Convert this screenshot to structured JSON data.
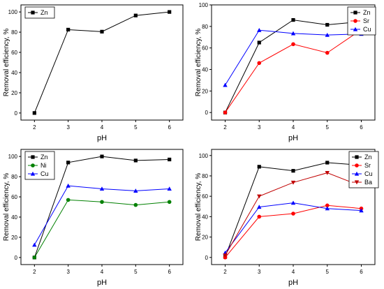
{
  "chart_data": [
    {
      "type": "line",
      "xlabel": "pH",
      "ylabel": "Removal efficiency, %",
      "x": [
        2,
        3,
        4,
        5,
        6
      ],
      "xlim": [
        1.6,
        6.4
      ],
      "ylim": [
        -7,
        107
      ],
      "yticks": [
        0,
        20,
        40,
        60,
        80,
        100
      ],
      "grid": false,
      "legend_position": "top-left",
      "series": [
        {
          "name": "Zn",
          "values": [
            0,
            82.5,
            80.5,
            96.5,
            100
          ],
          "color": "#000000",
          "marker": "square"
        }
      ]
    },
    {
      "type": "line",
      "xlabel": "pH",
      "ylabel": "Removal efficiency, %",
      "x": [
        2,
        3,
        4,
        5,
        6
      ],
      "xlim": [
        1.6,
        6.4
      ],
      "ylim": [
        -7,
        100
      ],
      "yticks": [
        0,
        20,
        40,
        60,
        80,
        100
      ],
      "grid": false,
      "legend_position": "top-right",
      "series": [
        {
          "name": "Zn",
          "values": [
            0,
            65,
            86,
            81.5,
            84.5
          ],
          "color": "#000000",
          "marker": "square"
        },
        {
          "name": "Sr",
          "values": [
            0,
            46,
            63.5,
            55.5,
            77
          ],
          "color": "#ff0000",
          "marker": "circle"
        },
        {
          "name": "Cu",
          "values": [
            25.5,
            76.5,
            73.5,
            72,
            73
          ],
          "color": "#0000ff",
          "marker": "triangle"
        }
      ]
    },
    {
      "type": "line",
      "xlabel": "pH",
      "ylabel": "Removal efficiency, %",
      "x": [
        2,
        3,
        4,
        5,
        6
      ],
      "xlim": [
        1.6,
        6.4
      ],
      "ylim": [
        -7,
        107
      ],
      "yticks": [
        0,
        20,
        40,
        60,
        80,
        100
      ],
      "grid": false,
      "legend_position": "top-left",
      "series": [
        {
          "name": "Zn",
          "values": [
            0,
            94,
            100,
            96,
            97
          ],
          "color": "#000000",
          "marker": "square"
        },
        {
          "name": "Ni",
          "values": [
            0,
            57,
            55,
            52,
            55
          ],
          "color": "#008000",
          "marker": "circle"
        },
        {
          "name": "Cu",
          "values": [
            12.5,
            71,
            68,
            66,
            68
          ],
          "color": "#0000ff",
          "marker": "triangle"
        }
      ]
    },
    {
      "type": "line",
      "xlabel": "pH",
      "ylabel": "Removal efficiency, %",
      "x": [
        2,
        3,
        4,
        5,
        6
      ],
      "xlim": [
        1.6,
        6.4
      ],
      "ylim": [
        -7,
        106
      ],
      "yticks": [
        0,
        20,
        40,
        60,
        80,
        100
      ],
      "grid": false,
      "legend_position": "top-right",
      "series": [
        {
          "name": "Zn",
          "values": [
            0.5,
            89,
            85,
            93,
            90.5
          ],
          "color": "#000000",
          "marker": "square"
        },
        {
          "name": "Sr",
          "values": [
            0,
            40,
            43,
            51,
            48
          ],
          "color": "#ff0000",
          "marker": "circle"
        },
        {
          "name": "Cu",
          "values": [
            4.5,
            49.5,
            53.5,
            48,
            46
          ],
          "color": "#0000ff",
          "marker": "triangle"
        },
        {
          "name": "Ba",
          "values": [
            2,
            60,
            73.5,
            83,
            70
          ],
          "color": "#c00000",
          "marker": "triangle-down"
        }
      ]
    }
  ]
}
